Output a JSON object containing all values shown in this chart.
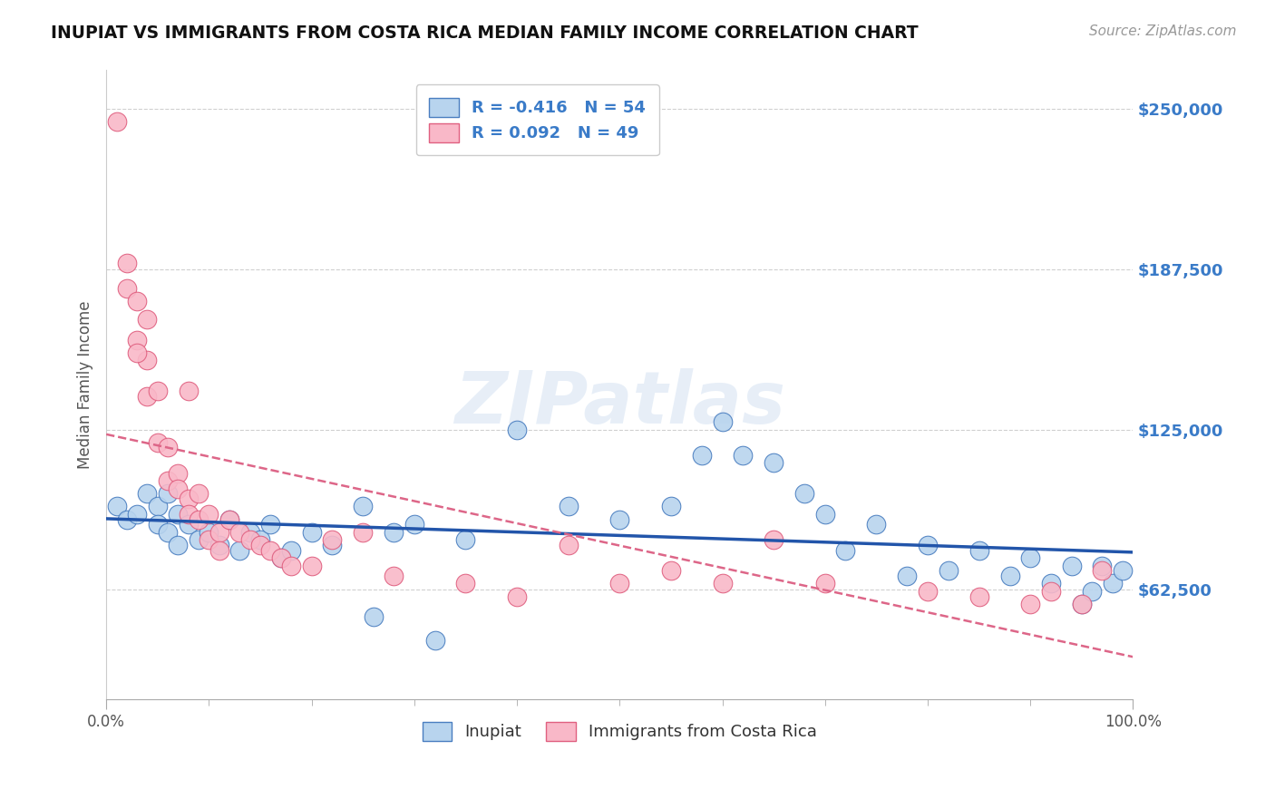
{
  "title": "INUPIAT VS IMMIGRANTS FROM COSTA RICA MEDIAN FAMILY INCOME CORRELATION CHART",
  "source": "Source: ZipAtlas.com",
  "ylabel": "Median Family Income",
  "legend_label_blue": "Inupiat",
  "legend_label_pink": "Immigrants from Costa Rica",
  "R_blue": -0.416,
  "N_blue": 54,
  "R_pink": 0.092,
  "N_pink": 49,
  "xlim": [
    0,
    100
  ],
  "ylim": [
    20000,
    265000
  ],
  "yticks": [
    62500,
    125000,
    187500,
    250000
  ],
  "ytick_labels": [
    "$62,500",
    "$125,000",
    "$187,500",
    "$250,000"
  ],
  "xtick_positions": [
    0,
    100
  ],
  "xtick_labels": [
    "0.0%",
    "100.0%"
  ],
  "color_blue": "#b8d4ee",
  "color_pink": "#f9b8c8",
  "edge_color_blue": "#4a7ec0",
  "edge_color_pink": "#e06080",
  "line_color_blue": "#2255aa",
  "line_color_pink": "#dd6688",
  "ytick_color": "#3a7bc8",
  "watermark_text": "ZIPatlas",
  "background_color": "#ffffff",
  "blue_scatter_x": [
    1,
    2,
    3,
    4,
    5,
    5,
    6,
    6,
    7,
    7,
    8,
    9,
    10,
    11,
    12,
    13,
    14,
    15,
    16,
    17,
    18,
    20,
    22,
    25,
    28,
    30,
    35,
    40,
    45,
    50,
    55,
    58,
    60,
    62,
    65,
    68,
    70,
    72,
    75,
    78,
    80,
    82,
    85,
    88,
    90,
    92,
    94,
    95,
    96,
    97,
    98,
    99,
    26,
    32
  ],
  "blue_scatter_y": [
    95000,
    90000,
    92000,
    100000,
    95000,
    88000,
    100000,
    85000,
    92000,
    80000,
    88000,
    82000,
    85000,
    80000,
    90000,
    78000,
    85000,
    82000,
    88000,
    75000,
    78000,
    85000,
    80000,
    95000,
    85000,
    88000,
    82000,
    125000,
    95000,
    90000,
    95000,
    115000,
    128000,
    115000,
    112000,
    100000,
    92000,
    78000,
    88000,
    68000,
    80000,
    70000,
    78000,
    68000,
    75000,
    65000,
    72000,
    57000,
    62000,
    72000,
    65000,
    70000,
    52000,
    43000
  ],
  "pink_scatter_x": [
    1,
    2,
    2,
    3,
    3,
    4,
    4,
    4,
    5,
    5,
    6,
    6,
    7,
    7,
    8,
    8,
    8,
    9,
    9,
    10,
    10,
    11,
    11,
    12,
    13,
    14,
    15,
    16,
    17,
    18,
    20,
    22,
    25,
    28,
    35,
    40,
    45,
    50,
    55,
    60,
    65,
    70,
    80,
    85,
    90,
    92,
    95,
    97,
    3
  ],
  "pink_scatter_y": [
    245000,
    190000,
    180000,
    175000,
    160000,
    168000,
    152000,
    138000,
    140000,
    120000,
    118000,
    105000,
    108000,
    102000,
    98000,
    92000,
    140000,
    90000,
    100000,
    92000,
    82000,
    85000,
    78000,
    90000,
    85000,
    82000,
    80000,
    78000,
    75000,
    72000,
    72000,
    82000,
    85000,
    68000,
    65000,
    60000,
    80000,
    65000,
    70000,
    65000,
    82000,
    65000,
    62000,
    60000,
    57000,
    62000,
    57000,
    70000,
    155000
  ]
}
